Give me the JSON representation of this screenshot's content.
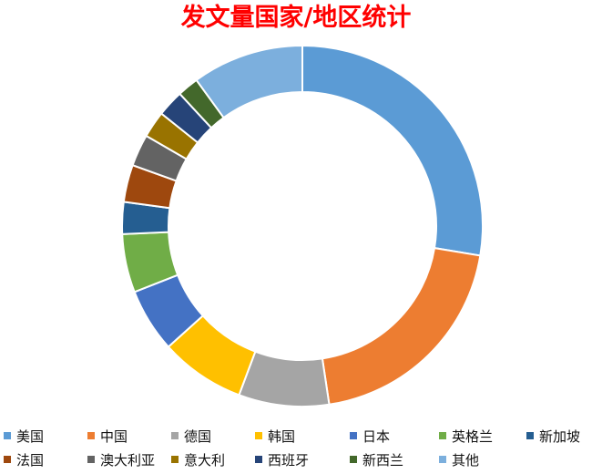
{
  "colors": {
    "title": "#ff0000"
  },
  "chart_data": {
    "type": "pie",
    "variant": "donut",
    "title": "发文量国家/地区统计",
    "data_labels": false,
    "legend_position": "bottom",
    "start_angle_deg": 0,
    "direction": "clockwise",
    "slices": [
      {
        "label": "美国",
        "value": 29.0,
        "color": "#5b9bd5"
      },
      {
        "label": "中国",
        "value": 21.0,
        "color": "#ed7d31"
      },
      {
        "label": "德国",
        "value": 8.5,
        "color": "#a5a5a5"
      },
      {
        "label": "韩国",
        "value": 8.0,
        "color": "#ffc000"
      },
      {
        "label": "日本",
        "value": 6.0,
        "color": "#4472c4"
      },
      {
        "label": "英格兰",
        "value": 5.5,
        "color": "#70ad47"
      },
      {
        "label": "新加坡",
        "value": 3.0,
        "color": "#255e91"
      },
      {
        "label": "法国",
        "value": 3.5,
        "color": "#9e480e"
      },
      {
        "label": "澳大利亚",
        "value": 3.0,
        "color": "#636363"
      },
      {
        "label": "意大利",
        "value": 2.5,
        "color": "#997300"
      },
      {
        "label": "西班牙",
        "value": 2.5,
        "color": "#264478"
      },
      {
        "label": "新西兰",
        "value": 2.0,
        "color": "#43682b"
      },
      {
        "label": "其他",
        "value": 10.5,
        "color": "#7cafdd"
      }
    ]
  }
}
